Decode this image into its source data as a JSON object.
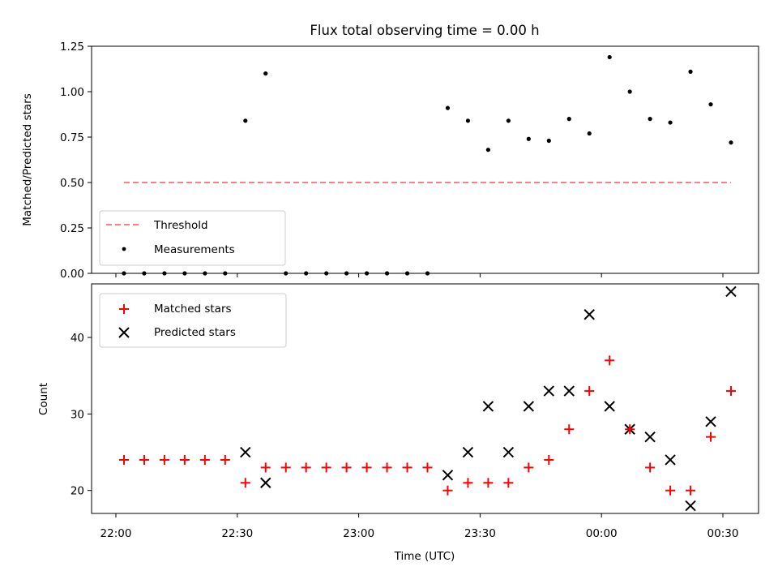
{
  "chart_data": [
    {
      "type": "scatter",
      "title": "Flux total observing time = 0.00 h",
      "ylabel": "Matched/Predicted stars",
      "xlabel": "",
      "ylim": [
        0,
        1.25
      ],
      "yticks": [
        "0.00",
        "0.25",
        "0.50",
        "0.75",
        "1.00",
        "1.25"
      ],
      "show_xtick_labels": false,
      "legend": "lower-left",
      "grid": false,
      "x_times": [
        "22:02",
        "22:07",
        "22:12",
        "22:17",
        "22:22",
        "22:27",
        "22:32",
        "22:37",
        "22:42",
        "22:47",
        "22:52",
        "22:57",
        "23:02",
        "23:07",
        "23:12",
        "23:17",
        "23:22",
        "23:27",
        "23:32",
        "23:37",
        "23:42",
        "23:47",
        "23:52",
        "23:57",
        "00:02",
        "00:07",
        "00:12",
        "00:17",
        "00:22",
        "00:27",
        "00:32"
      ],
      "series": [
        {
          "name": "Threshold",
          "kind": "dashed-line",
          "color": "#ff7f7f",
          "x": [
            "22:02",
            "00:32"
          ],
          "y": [
            0.5,
            0.5
          ]
        },
        {
          "name": "Measurements",
          "kind": "dot",
          "color": "#000000",
          "y": [
            0.0,
            0.0,
            0.0,
            0.0,
            0.0,
            0.0,
            0.84,
            1.1,
            0.0,
            0.0,
            0.0,
            0.0,
            0.0,
            0.0,
            0.0,
            0.0,
            0.91,
            0.84,
            0.68,
            0.84,
            0.74,
            0.73,
            0.85,
            0.77,
            1.19,
            1.0,
            0.85,
            0.83,
            1.11,
            0.93,
            0.72
          ]
        }
      ]
    },
    {
      "type": "scatter",
      "title": "",
      "ylabel": "Count",
      "xlabel": "Time (UTC)",
      "ylim": [
        17,
        47
      ],
      "yticks": [
        "20",
        "30",
        "40"
      ],
      "xticks": [
        "22:00",
        "22:30",
        "23:00",
        "23:30",
        "00:00",
        "00:30"
      ],
      "legend": "upper-left",
      "grid": false,
      "x_times": [
        "22:02",
        "22:07",
        "22:12",
        "22:17",
        "22:22",
        "22:27",
        "22:32",
        "22:37",
        "22:42",
        "22:47",
        "22:52",
        "22:57",
        "23:02",
        "23:07",
        "23:12",
        "23:17",
        "23:22",
        "23:27",
        "23:32",
        "23:37",
        "23:42",
        "23:47",
        "23:52",
        "23:57",
        "00:02",
        "00:07",
        "00:12",
        "00:17",
        "00:22",
        "00:27",
        "00:32"
      ],
      "series": [
        {
          "name": "Matched stars",
          "kind": "plus",
          "color": "#ff0000",
          "y": [
            24,
            24,
            24,
            24,
            24,
            24,
            21,
            23,
            23,
            23,
            23,
            23,
            23,
            23,
            23,
            23,
            20,
            21,
            21,
            21,
            23,
            24,
            28,
            33,
            37,
            28,
            23,
            20,
            20,
            27,
            33
          ]
        },
        {
          "name": "Predicted stars",
          "kind": "x",
          "color": "#000000",
          "x": [
            "22:32",
            "22:37",
            "23:22",
            "23:27",
            "23:32",
            "23:37",
            "23:42",
            "23:47",
            "23:52",
            "23:57",
            "00:02",
            "00:07",
            "00:12",
            "00:17",
            "00:22",
            "00:27",
            "00:32"
          ],
          "y": [
            25,
            21,
            22,
            25,
            31,
            25,
            31,
            33,
            33,
            43,
            31,
            28,
            27,
            24,
            18,
            29,
            46
          ]
        }
      ]
    }
  ]
}
